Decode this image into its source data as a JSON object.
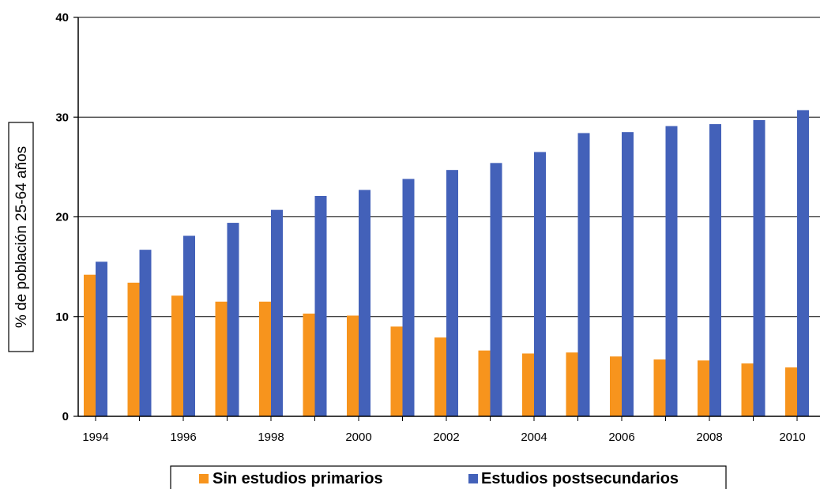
{
  "chart_data": {
    "type": "bar",
    "ylabel": "% de población 25-64 años",
    "ylim": [
      0,
      40
    ],
    "yticks": [
      "0",
      "10",
      "20",
      "30",
      "40"
    ],
    "x": [
      "1994",
      "1995",
      "1996",
      "1997",
      "1998",
      "1999",
      "2000",
      "2001",
      "2002",
      "2003",
      "2004",
      "2005",
      "2006",
      "2007",
      "2008",
      "2009",
      "2010"
    ],
    "xtick_labels": [
      "1994",
      "1996",
      "1998",
      "2000",
      "2002",
      "2004",
      "2006",
      "2008",
      "2010"
    ],
    "grid": true,
    "legend_position": "bottom",
    "series": [
      {
        "name": "Sin estudios primarios",
        "color": "#F7941D",
        "values": [
          14.2,
          13.4,
          12.1,
          11.5,
          11.5,
          10.3,
          10.1,
          9.0,
          7.9,
          6.6,
          6.3,
          6.4,
          6.0,
          5.7,
          5.6,
          5.3,
          4.9
        ]
      },
      {
        "name": "Estudios postsecundarios",
        "color": "#4361B9",
        "values": [
          15.5,
          16.7,
          18.1,
          19.4,
          20.7,
          22.1,
          22.7,
          23.8,
          24.7,
          25.4,
          26.5,
          28.4,
          28.5,
          29.1,
          29.3,
          29.7,
          30.7
        ]
      }
    ]
  }
}
